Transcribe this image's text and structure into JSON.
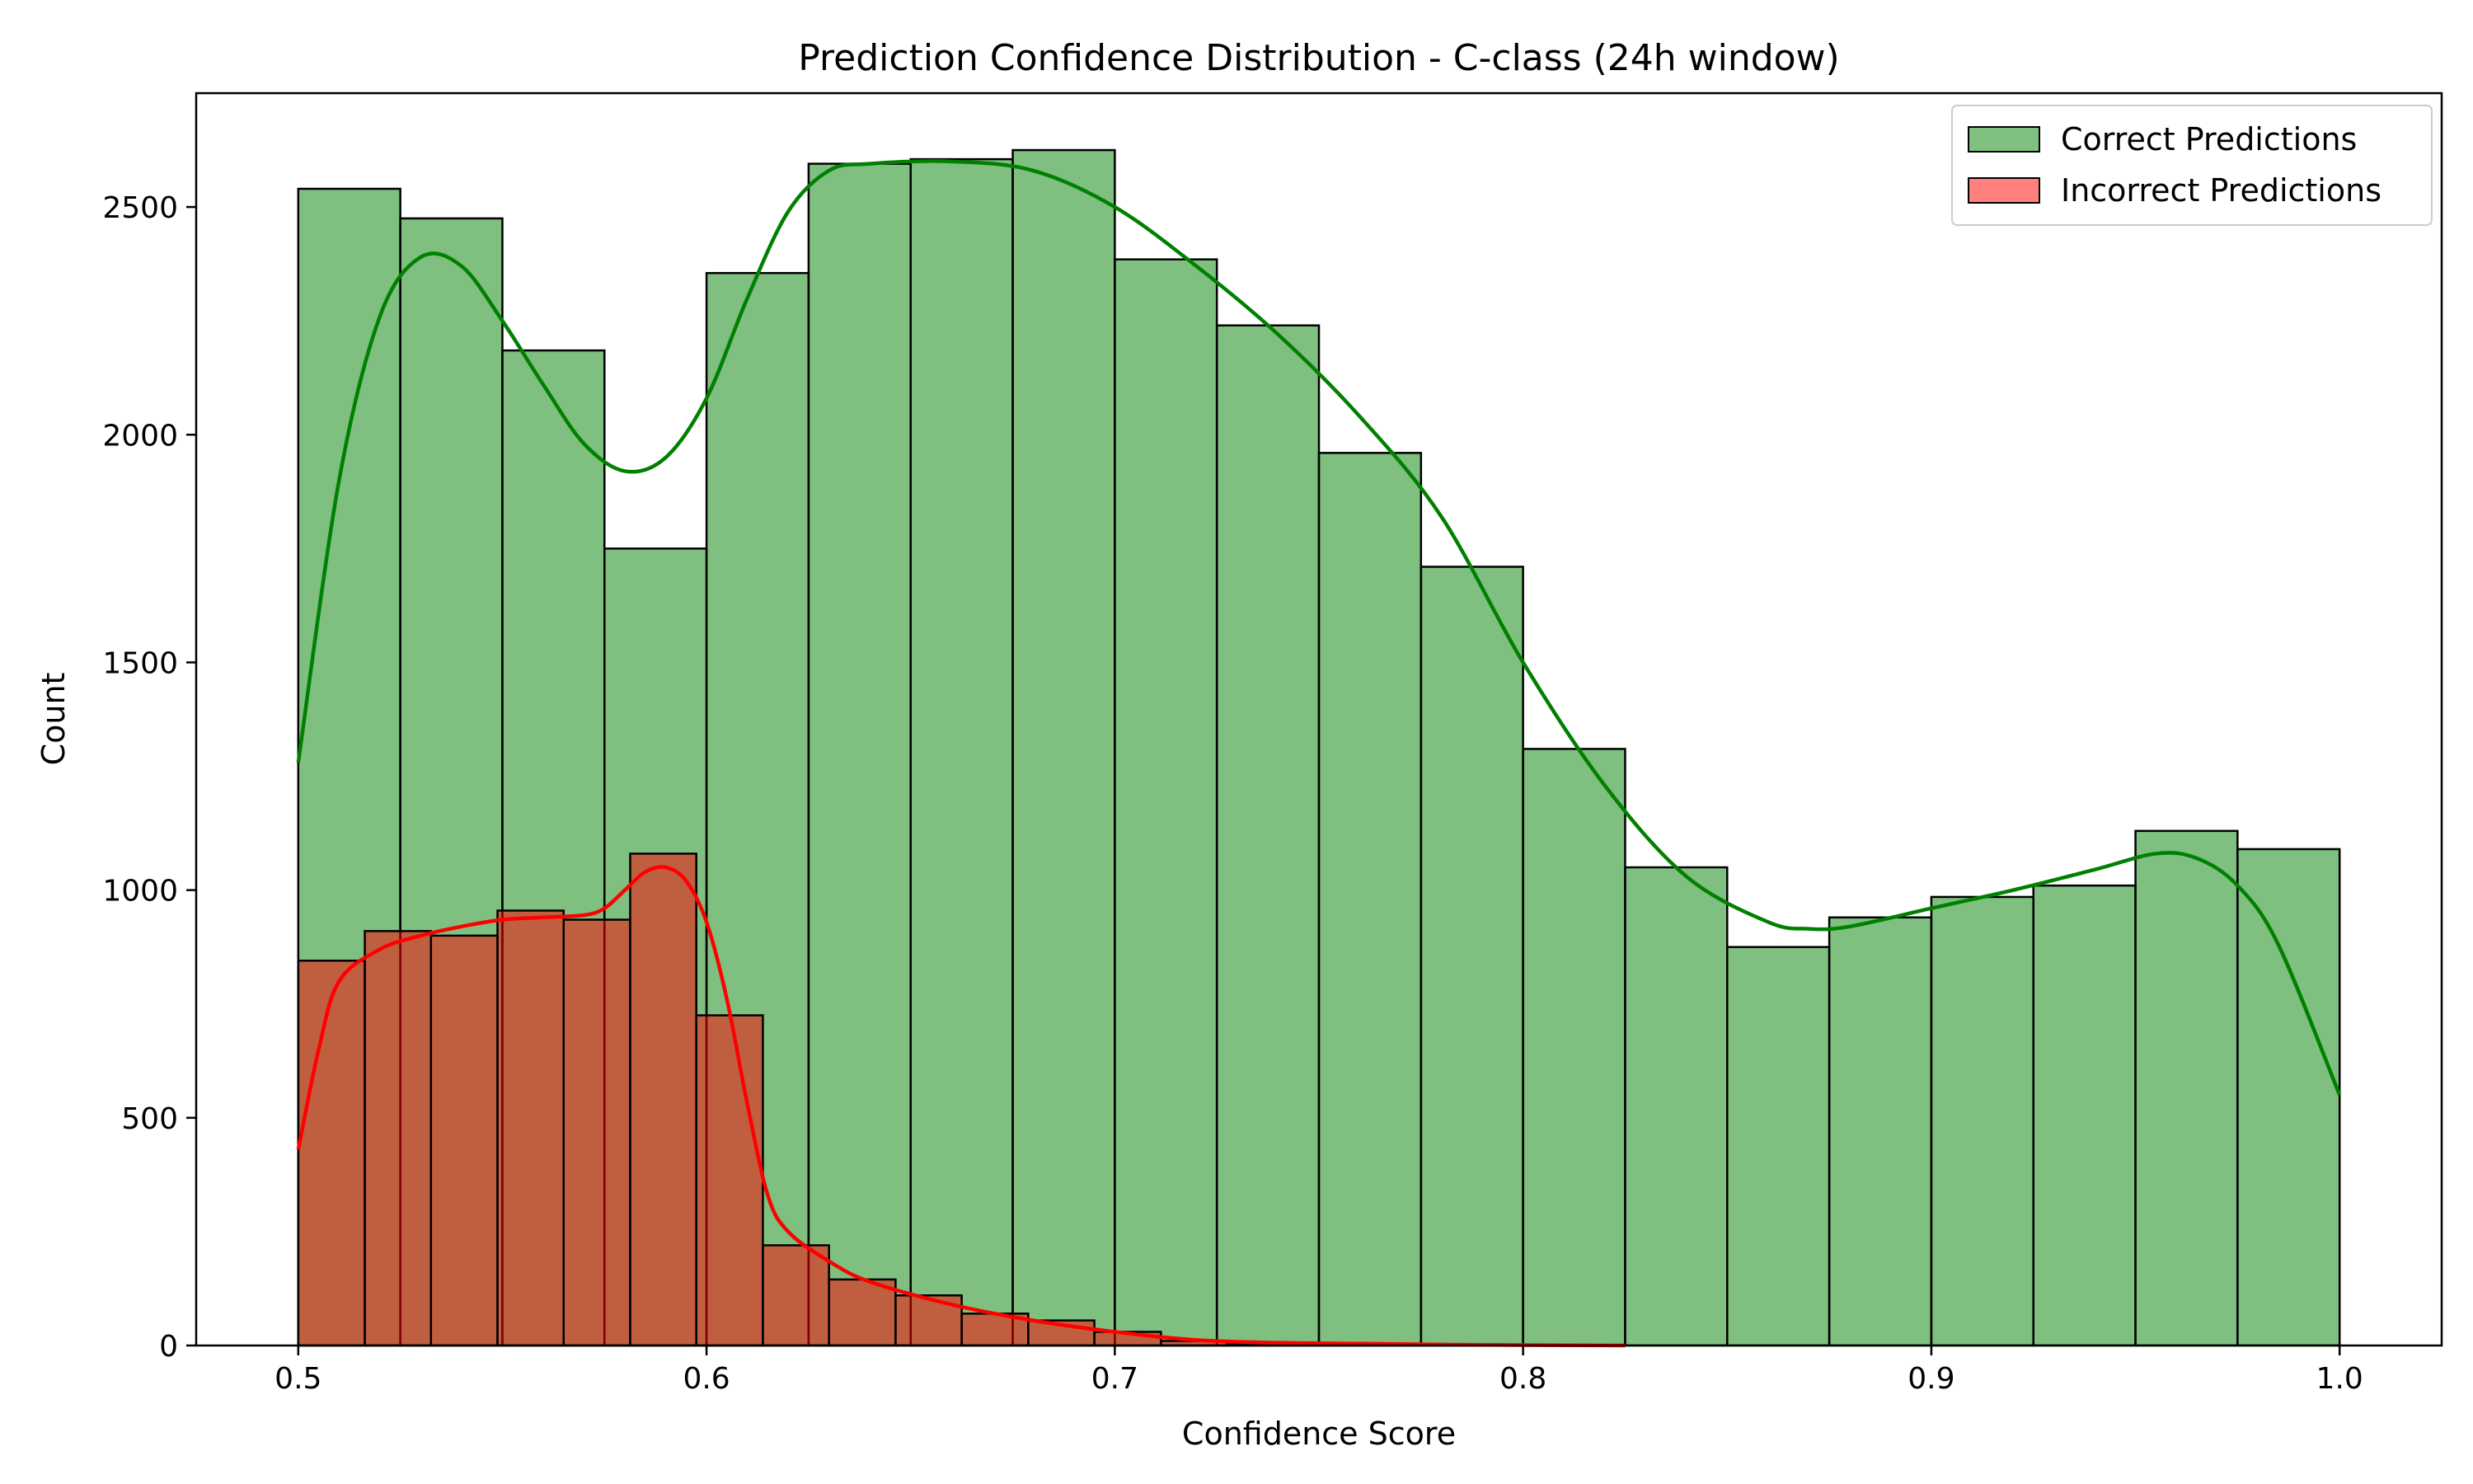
{
  "chart_data": {
    "type": "bar",
    "title": "Prediction Confidence Distribution - C-class (24h window)",
    "xlabel": "Confidence Score",
    "ylabel": "Count",
    "xlim": [
      0.475,
      1.025
    ],
    "ylim": [
      0,
      2750
    ],
    "xticks": [
      "0.5",
      "0.6",
      "0.7",
      "0.8",
      "0.9",
      "1.0"
    ],
    "yticks": [
      "0",
      "500",
      "1000",
      "1500",
      "2000",
      "2500"
    ],
    "grid": false,
    "legend_position": "top-right",
    "series": [
      {
        "name": "Correct Predictions",
        "color": "#008000",
        "bin_edges": [
          0.5,
          0.525,
          0.55,
          0.575,
          0.6,
          0.625,
          0.65,
          0.675,
          0.7,
          0.725,
          0.75,
          0.775,
          0.8,
          0.825,
          0.85,
          0.875,
          0.9,
          0.925,
          0.95,
          0.975,
          1.0
        ],
        "counts": [
          2540,
          2475,
          2185,
          1750,
          2355,
          2595,
          2605,
          2625,
          2385,
          2240,
          1960,
          1710,
          1310,
          1050,
          875,
          940,
          985,
          1010,
          1130,
          1090
        ],
        "kde_x": [
          0.5,
          0.51,
          0.52,
          0.53,
          0.54,
          0.55,
          0.56,
          0.57,
          0.58,
          0.59,
          0.6,
          0.61,
          0.62,
          0.63,
          0.64,
          0.66,
          0.68,
          0.7,
          0.72,
          0.74,
          0.76,
          0.78,
          0.8,
          0.82,
          0.84,
          0.86,
          0.87,
          0.88,
          0.9,
          0.92,
          0.94,
          0.955,
          0.965,
          0.975,
          0.985,
          1.0
        ],
        "kde_y": [
          1280,
          1900,
          2260,
          2390,
          2370,
          2250,
          2110,
          1980,
          1920,
          1950,
          2080,
          2300,
          2490,
          2580,
          2595,
          2600,
          2580,
          2500,
          2370,
          2220,
          2040,
          1820,
          1500,
          1230,
          1030,
          930,
          915,
          920,
          960,
          1000,
          1045,
          1080,
          1070,
          1010,
          880,
          550
        ]
      },
      {
        "name": "Incorrect Predictions",
        "color": "#ff0000",
        "bin_edges": [
          0.5,
          0.5163,
          0.5325,
          0.5488,
          0.565,
          0.5813,
          0.5975,
          0.6138,
          0.63,
          0.6463,
          0.6625,
          0.6788,
          0.695,
          0.7113,
          0.7275,
          0.7438,
          0.76,
          0.7763,
          0.7925,
          0.8088,
          0.825
        ],
        "counts": [
          845,
          910,
          900,
          955,
          935,
          1080,
          725,
          220,
          145,
          110,
          70,
          55,
          30,
          10,
          5,
          4,
          3,
          2,
          2,
          1
        ],
        "kde_x": [
          0.5,
          0.505,
          0.51,
          0.52,
          0.53,
          0.54,
          0.55,
          0.56,
          0.57,
          0.575,
          0.58,
          0.585,
          0.59,
          0.595,
          0.6,
          0.605,
          0.61,
          0.615,
          0.62,
          0.63,
          0.64,
          0.66,
          0.68,
          0.7,
          0.72,
          0.74,
          0.76,
          0.78,
          0.8,
          0.825
        ],
        "kde_y": [
          430,
          650,
          800,
          870,
          900,
          920,
          935,
          940,
          945,
          960,
          1000,
          1040,
          1050,
          1020,
          930,
          760,
          530,
          330,
          250,
          185,
          140,
          90,
          55,
          30,
          12,
          6,
          4,
          2,
          1,
          0
        ]
      }
    ]
  }
}
